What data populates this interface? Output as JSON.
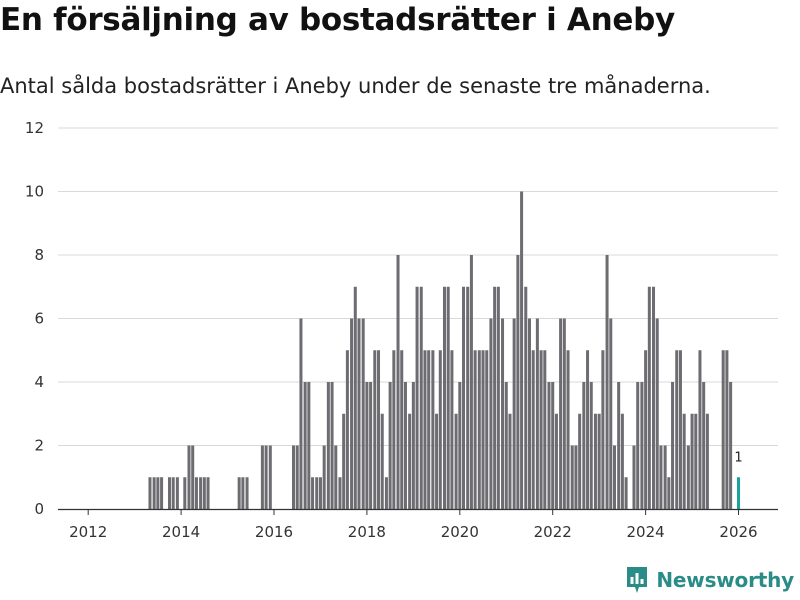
{
  "header": {
    "title": "En försäljning av bostadsrätter i Aneby",
    "subtitle": "Antal sålda bostadsrätter i Aneby under de senaste tre månaderna."
  },
  "brand": {
    "name": "Newsworthy",
    "icon": "newsworthy-logo-icon"
  },
  "colors": {
    "bar": "#6c6c71",
    "highlight": "#1aa39a",
    "brand": "#2a8c87"
  },
  "chart_data": {
    "type": "bar",
    "title": "En försäljning av bostadsrätter i Aneby",
    "xlabel": "",
    "ylabel": "",
    "ylim": [
      0,
      12
    ],
    "yticks": [
      0,
      2,
      4,
      6,
      8,
      10,
      12
    ],
    "xlim": [
      2011.35,
      2026.85
    ],
    "xticks": [
      2012,
      2014,
      2016,
      2018,
      2020,
      2022,
      2024,
      2026
    ],
    "x": [
      2013.33,
      2013.42,
      2013.5,
      2013.58,
      2013.67,
      2013.75,
      2013.83,
      2013.92,
      2014.0,
      2014.08,
      2014.17,
      2014.25,
      2014.33,
      2014.42,
      2014.5,
      2014.58,
      2014.67,
      2014.75,
      2014.83,
      2014.92,
      2015.0,
      2015.08,
      2015.17,
      2015.25,
      2015.33,
      2015.42,
      2015.5,
      2015.58,
      2015.67,
      2015.75,
      2015.83,
      2015.92,
      2016.0,
      2016.08,
      2016.17,
      2016.25,
      2016.33,
      2016.42,
      2016.5,
      2016.58,
      2016.67,
      2016.75,
      2016.83,
      2016.92,
      2017.0,
      2017.08,
      2017.17,
      2017.25,
      2017.33,
      2017.42,
      2017.5,
      2017.58,
      2017.67,
      2017.75,
      2017.83,
      2017.92,
      2018.0,
      2018.08,
      2018.17,
      2018.25,
      2018.33,
      2018.42,
      2018.5,
      2018.58,
      2018.67,
      2018.75,
      2018.83,
      2018.92,
      2019.0,
      2019.08,
      2019.17,
      2019.25,
      2019.33,
      2019.42,
      2019.5,
      2019.58,
      2019.67,
      2019.75,
      2019.83,
      2019.92,
      2020.0,
      2020.08,
      2020.17,
      2020.25,
      2020.33,
      2020.42,
      2020.5,
      2020.58,
      2020.67,
      2020.75,
      2020.83,
      2020.92,
      2021.0,
      2021.08,
      2021.17,
      2021.25,
      2021.33,
      2021.42,
      2021.5,
      2021.58,
      2021.67,
      2021.75,
      2021.83,
      2021.92,
      2022.0,
      2022.08,
      2022.17,
      2022.25,
      2022.33,
      2022.42,
      2022.5,
      2022.58,
      2022.67,
      2022.75,
      2022.83,
      2022.92,
      2023.0,
      2023.08,
      2023.17,
      2023.25,
      2023.33,
      2023.42,
      2023.5,
      2023.58,
      2023.67,
      2023.75,
      2023.83,
      2023.92,
      2024.0,
      2024.08,
      2024.17,
      2024.25,
      2024.33,
      2024.42,
      2024.5,
      2024.58,
      2024.67,
      2024.75,
      2024.83,
      2024.92,
      2025.0,
      2025.08,
      2025.17,
      2025.25,
      2025.33,
      2025.42,
      2025.5,
      2025.58,
      2025.67,
      2025.75,
      2025.83,
      2025.92,
      2026.0,
      2026.08
    ],
    "values": [
      1,
      1,
      1,
      1,
      0,
      1,
      1,
      1,
      0,
      1,
      2,
      2,
      1,
      1,
      1,
      1,
      0,
      0,
      0,
      0,
      0,
      0,
      0,
      1,
      1,
      1,
      0,
      0,
      0,
      2,
      2,
      2,
      0,
      0,
      0,
      0,
      0,
      2,
      2,
      6,
      4,
      4,
      1,
      1,
      1,
      2,
      4,
      4,
      2,
      1,
      3,
      5,
      6,
      7,
      6,
      6,
      4,
      4,
      5,
      5,
      3,
      1,
      4,
      5,
      8,
      5,
      4,
      3,
      4,
      7,
      7,
      5,
      5,
      5,
      3,
      5,
      7,
      7,
      5,
      3,
      4,
      7,
      7,
      8,
      5,
      5,
      5,
      5,
      6,
      7,
      7,
      6,
      4,
      3,
      6,
      8,
      10,
      7,
      6,
      5,
      6,
      5,
      5,
      4,
      4,
      3,
      6,
      6,
      5,
      2,
      2,
      3,
      4,
      5,
      4,
      3,
      3,
      5,
      8,
      6,
      2,
      4,
      3,
      1,
      0,
      2,
      4,
      4,
      5,
      7,
      7,
      6,
      2,
      2,
      1,
      4,
      5,
      5,
      3,
      2,
      3,
      3,
      5,
      4,
      3,
      0,
      0,
      0,
      5,
      5,
      4,
      0,
      1,
      0
    ],
    "highlight_index": 152,
    "annotations": [
      {
        "x": 2026.0,
        "y": 1,
        "text": "1"
      }
    ]
  }
}
